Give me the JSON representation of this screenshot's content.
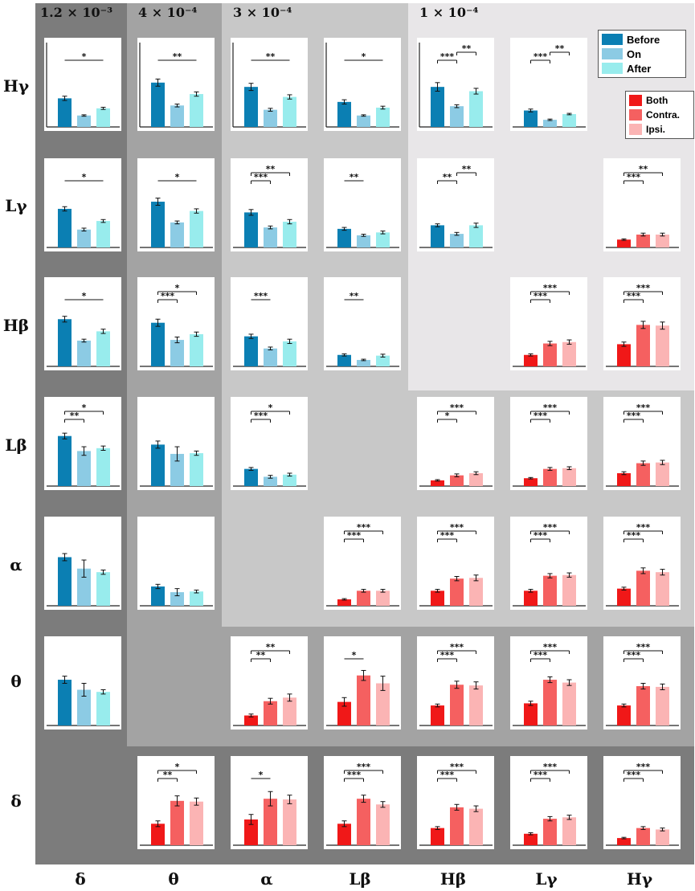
{
  "headers": [
    "1.2 × 10⁻³",
    "4 × 10⁻⁴",
    "3 × 10⁻⁴",
    "1 × 10⁻⁴"
  ],
  "row_labels": [
    "Hγ",
    "Lγ",
    "Hβ",
    "Lβ",
    "α",
    "θ",
    "δ"
  ],
  "col_labels": [
    "δ",
    "θ",
    "α",
    "Lβ",
    "Hβ",
    "Lγ",
    "Hγ"
  ],
  "legend_blue": [
    {
      "label": "Before",
      "color": "#0b7fb3"
    },
    {
      "label": "On",
      "color": "#8ccbe4"
    },
    {
      "label": "After",
      "color": "#98eced"
    }
  ],
  "legend_red": [
    {
      "label": "Both",
      "color": "#f01818"
    },
    {
      "label": "Contra.",
      "color": "#f56060"
    },
    {
      "label": "Ipsi.",
      "color": "#fbb4b4"
    }
  ],
  "chart_data": {
    "type": "bar",
    "ylim": [
      0,
      1
    ],
    "groups": {
      "blue": [
        "Before",
        "On",
        "After"
      ],
      "red": [
        "Both",
        "Contra.",
        "Ipsi."
      ]
    },
    "panels": [
      {
        "row": 0,
        "col": 0,
        "group": "blue",
        "values": [
          0.4,
          0.16,
          0.26
        ],
        "errors": [
          0.03,
          0.01,
          0.015
        ],
        "sig": [
          {
            "from": 0,
            "to": 2,
            "label": "*"
          }
        ]
      },
      {
        "row": 0,
        "col": 1,
        "group": "blue",
        "values": [
          0.62,
          0.3,
          0.46
        ],
        "errors": [
          0.05,
          0.02,
          0.03
        ],
        "sig": [
          {
            "from": 0,
            "to": 2,
            "label": "**"
          }
        ]
      },
      {
        "row": 0,
        "col": 2,
        "group": "blue",
        "values": [
          0.56,
          0.24,
          0.42
        ],
        "errors": [
          0.05,
          0.02,
          0.03
        ],
        "sig": [
          {
            "from": 0,
            "to": 2,
            "label": "**"
          }
        ]
      },
      {
        "row": 0,
        "col": 3,
        "group": "blue",
        "values": [
          0.35,
          0.16,
          0.27
        ],
        "errors": [
          0.03,
          0.01,
          0.02
        ],
        "sig": [
          {
            "from": 0,
            "to": 2,
            "label": "*"
          }
        ]
      },
      {
        "row": 0,
        "col": 4,
        "group": "blue",
        "values": [
          0.56,
          0.29,
          0.5
        ],
        "errors": [
          0.06,
          0.02,
          0.04
        ],
        "sig": [
          {
            "from": 0,
            "to": 1,
            "label": "***"
          },
          {
            "from": 1,
            "to": 2,
            "label": "**"
          }
        ]
      },
      {
        "row": 0,
        "col": 5,
        "group": "blue",
        "values": [
          0.23,
          0.1,
          0.18
        ],
        "errors": [
          0.02,
          0.01,
          0.01
        ],
        "sig": [
          {
            "from": 0,
            "to": 1,
            "label": "***"
          },
          {
            "from": 1,
            "to": 2,
            "label": "**"
          }
        ]
      },
      {
        "row": 1,
        "col": 0,
        "group": "blue",
        "values": [
          0.54,
          0.25,
          0.37
        ],
        "errors": [
          0.03,
          0.02,
          0.02
        ],
        "sig": [
          {
            "from": 0,
            "to": 2,
            "label": "*"
          }
        ]
      },
      {
        "row": 1,
        "col": 1,
        "group": "blue",
        "values": [
          0.64,
          0.35,
          0.51
        ],
        "errors": [
          0.05,
          0.02,
          0.03
        ],
        "sig": [
          {
            "from": 0,
            "to": 2,
            "label": "*"
          }
        ]
      },
      {
        "row": 1,
        "col": 2,
        "group": "blue",
        "values": [
          0.49,
          0.28,
          0.36
        ],
        "errors": [
          0.04,
          0.02,
          0.03
        ],
        "sig": [
          {
            "from": 0,
            "to": 1,
            "label": "***"
          },
          {
            "from": 0,
            "to": 2,
            "label": "**"
          }
        ]
      },
      {
        "row": 1,
        "col": 3,
        "group": "blue",
        "values": [
          0.26,
          0.17,
          0.21
        ],
        "errors": [
          0.02,
          0.015,
          0.02
        ],
        "sig": [
          {
            "from": 0,
            "to": 1,
            "label": "**"
          }
        ]
      },
      {
        "row": 1,
        "col": 4,
        "group": "blue",
        "values": [
          0.31,
          0.19,
          0.31
        ],
        "errors": [
          0.02,
          0.02,
          0.03
        ],
        "sig": [
          {
            "from": 0,
            "to": 1,
            "label": "**"
          },
          {
            "from": 1,
            "to": 2,
            "label": "**"
          }
        ]
      },
      {
        "row": 1,
        "col": 6,
        "group": "red",
        "values": [
          0.11,
          0.18,
          0.18
        ],
        "errors": [
          0.01,
          0.02,
          0.02
        ],
        "sig": [
          {
            "from": 0,
            "to": 1,
            "label": "***"
          },
          {
            "from": 0,
            "to": 2,
            "label": "**"
          }
        ]
      },
      {
        "row": 2,
        "col": 0,
        "group": "blue",
        "values": [
          0.66,
          0.36,
          0.49
        ],
        "errors": [
          0.04,
          0.02,
          0.03
        ],
        "sig": [
          {
            "from": 0,
            "to": 2,
            "label": "*"
          }
        ]
      },
      {
        "row": 2,
        "col": 1,
        "group": "blue",
        "values": [
          0.61,
          0.37,
          0.45
        ],
        "errors": [
          0.05,
          0.04,
          0.03
        ],
        "sig": [
          {
            "from": 0,
            "to": 1,
            "label": "***"
          },
          {
            "from": 0,
            "to": 2,
            "label": "*"
          }
        ]
      },
      {
        "row": 2,
        "col": 2,
        "group": "blue",
        "values": [
          0.42,
          0.25,
          0.35
        ],
        "errors": [
          0.03,
          0.02,
          0.03
        ],
        "sig": [
          {
            "from": 0,
            "to": 1,
            "label": "***"
          }
        ]
      },
      {
        "row": 2,
        "col": 3,
        "group": "blue",
        "values": [
          0.16,
          0.09,
          0.15
        ],
        "errors": [
          0.015,
          0.01,
          0.02
        ],
        "sig": [
          {
            "from": 0,
            "to": 1,
            "label": "**"
          }
        ]
      },
      {
        "row": 2,
        "col": 5,
        "group": "red",
        "values": [
          0.16,
          0.32,
          0.34
        ],
        "errors": [
          0.015,
          0.03,
          0.03
        ],
        "sig": [
          {
            "from": 0,
            "to": 1,
            "label": "***"
          },
          {
            "from": 0,
            "to": 2,
            "label": "***"
          }
        ]
      },
      {
        "row": 2,
        "col": 6,
        "group": "red",
        "values": [
          0.31,
          0.58,
          0.57
        ],
        "errors": [
          0.03,
          0.05,
          0.05
        ],
        "sig": [
          {
            "from": 0,
            "to": 1,
            "label": "***"
          },
          {
            "from": 0,
            "to": 2,
            "label": "***"
          }
        ]
      },
      {
        "row": 3,
        "col": 0,
        "group": "blue",
        "values": [
          0.7,
          0.49,
          0.53
        ],
        "errors": [
          0.04,
          0.06,
          0.03
        ],
        "sig": [
          {
            "from": 0,
            "to": 1,
            "label": "**"
          },
          {
            "from": 0,
            "to": 2,
            "label": "*"
          }
        ]
      },
      {
        "row": 3,
        "col": 1,
        "group": "blue",
        "values": [
          0.58,
          0.45,
          0.46
        ],
        "errors": [
          0.05,
          0.1,
          0.03
        ],
        "sig": []
      },
      {
        "row": 3,
        "col": 2,
        "group": "blue",
        "values": [
          0.24,
          0.13,
          0.16
        ],
        "errors": [
          0.02,
          0.02,
          0.02
        ],
        "sig": [
          {
            "from": 0,
            "to": 1,
            "label": "***"
          },
          {
            "from": 0,
            "to": 2,
            "label": "*"
          }
        ]
      },
      {
        "row": 3,
        "col": 4,
        "group": "red",
        "values": [
          0.08,
          0.15,
          0.18
        ],
        "errors": [
          0.01,
          0.02,
          0.02
        ],
        "sig": [
          {
            "from": 0,
            "to": 1,
            "label": "*"
          },
          {
            "from": 0,
            "to": 2,
            "label": "***"
          }
        ]
      },
      {
        "row": 3,
        "col": 5,
        "group": "red",
        "values": [
          0.11,
          0.24,
          0.25
        ],
        "errors": [
          0.01,
          0.02,
          0.02
        ],
        "sig": [
          {
            "from": 0,
            "to": 1,
            "label": "***"
          },
          {
            "from": 0,
            "to": 2,
            "label": "***"
          }
        ]
      },
      {
        "row": 3,
        "col": 6,
        "group": "red",
        "values": [
          0.18,
          0.32,
          0.33
        ],
        "errors": [
          0.02,
          0.03,
          0.03
        ],
        "sig": [
          {
            "from": 0,
            "to": 1,
            "label": "***"
          },
          {
            "from": 0,
            "to": 2,
            "label": "***"
          }
        ]
      },
      {
        "row": 4,
        "col": 0,
        "group": "blue",
        "values": [
          0.68,
          0.52,
          0.47
        ],
        "errors": [
          0.05,
          0.12,
          0.03
        ],
        "sig": []
      },
      {
        "row": 4,
        "col": 1,
        "group": "blue",
        "values": [
          0.27,
          0.19,
          0.2
        ],
        "errors": [
          0.03,
          0.05,
          0.02
        ],
        "sig": []
      },
      {
        "row": 4,
        "col": 3,
        "group": "red",
        "values": [
          0.09,
          0.21,
          0.21
        ],
        "errors": [
          0.01,
          0.02,
          0.02
        ],
        "sig": [
          {
            "from": 0,
            "to": 1,
            "label": "***"
          },
          {
            "from": 0,
            "to": 2,
            "label": "***"
          }
        ]
      },
      {
        "row": 4,
        "col": 4,
        "group": "red",
        "values": [
          0.21,
          0.38,
          0.39
        ],
        "errors": [
          0.02,
          0.03,
          0.04
        ],
        "sig": [
          {
            "from": 0,
            "to": 1,
            "label": "***"
          },
          {
            "from": 0,
            "to": 2,
            "label": "***"
          }
        ]
      },
      {
        "row": 4,
        "col": 5,
        "group": "red",
        "values": [
          0.21,
          0.42,
          0.43
        ],
        "errors": [
          0.02,
          0.03,
          0.03
        ],
        "sig": [
          {
            "from": 0,
            "to": 1,
            "label": "***"
          },
          {
            "from": 0,
            "to": 2,
            "label": "***"
          }
        ]
      },
      {
        "row": 4,
        "col": 6,
        "group": "red",
        "values": [
          0.24,
          0.49,
          0.47
        ],
        "errors": [
          0.02,
          0.04,
          0.04
        ],
        "sig": [
          {
            "from": 0,
            "to": 1,
            "label": "***"
          },
          {
            "from": 0,
            "to": 2,
            "label": "***"
          }
        ]
      },
      {
        "row": 5,
        "col": 0,
        "group": "blue",
        "values": [
          0.64,
          0.5,
          0.47
        ],
        "errors": [
          0.05,
          0.09,
          0.03
        ],
        "sig": []
      },
      {
        "row": 5,
        "col": 2,
        "group": "red",
        "values": [
          0.14,
          0.34,
          0.39
        ],
        "errors": [
          0.02,
          0.04,
          0.05
        ],
        "sig": [
          {
            "from": 0,
            "to": 1,
            "label": "**"
          },
          {
            "from": 0,
            "to": 2,
            "label": "**"
          }
        ]
      },
      {
        "row": 5,
        "col": 3,
        "group": "red",
        "values": [
          0.33,
          0.7,
          0.59
        ],
        "errors": [
          0.06,
          0.07,
          0.1
        ],
        "sig": [
          {
            "from": 0,
            "to": 1,
            "label": "*"
          }
        ]
      },
      {
        "row": 5,
        "col": 4,
        "group": "red",
        "values": [
          0.28,
          0.57,
          0.56
        ],
        "errors": [
          0.02,
          0.05,
          0.05
        ],
        "sig": [
          {
            "from": 0,
            "to": 1,
            "label": "***"
          },
          {
            "from": 0,
            "to": 2,
            "label": "***"
          }
        ]
      },
      {
        "row": 5,
        "col": 5,
        "group": "red",
        "values": [
          0.31,
          0.64,
          0.6
        ],
        "errors": [
          0.03,
          0.04,
          0.04
        ],
        "sig": [
          {
            "from": 0,
            "to": 1,
            "label": "***"
          },
          {
            "from": 0,
            "to": 2,
            "label": "***"
          }
        ]
      },
      {
        "row": 5,
        "col": 6,
        "group": "red",
        "values": [
          0.28,
          0.55,
          0.54
        ],
        "errors": [
          0.02,
          0.04,
          0.04
        ],
        "sig": [
          {
            "from": 0,
            "to": 1,
            "label": "***"
          },
          {
            "from": 0,
            "to": 2,
            "label": "***"
          }
        ]
      },
      {
        "row": 6,
        "col": 1,
        "group": "red",
        "values": [
          0.3,
          0.62,
          0.61
        ],
        "errors": [
          0.04,
          0.07,
          0.05
        ],
        "sig": [
          {
            "from": 0,
            "to": 1,
            "label": "**"
          },
          {
            "from": 0,
            "to": 2,
            "label": "*"
          }
        ]
      },
      {
        "row": 6,
        "col": 2,
        "group": "red",
        "values": [
          0.36,
          0.65,
          0.64
        ],
        "errors": [
          0.07,
          0.1,
          0.06
        ],
        "sig": [
          {
            "from": 0,
            "to": 1,
            "label": "*"
          }
        ]
      },
      {
        "row": 6,
        "col": 3,
        "group": "red",
        "values": [
          0.3,
          0.65,
          0.57
        ],
        "errors": [
          0.04,
          0.05,
          0.04
        ],
        "sig": [
          {
            "from": 0,
            "to": 1,
            "label": "***"
          },
          {
            "from": 0,
            "to": 2,
            "label": "***"
          }
        ]
      },
      {
        "row": 6,
        "col": 4,
        "group": "red",
        "values": [
          0.24,
          0.53,
          0.51
        ],
        "errors": [
          0.02,
          0.04,
          0.04
        ],
        "sig": [
          {
            "from": 0,
            "to": 1,
            "label": "***"
          },
          {
            "from": 0,
            "to": 2,
            "label": "***"
          }
        ]
      },
      {
        "row": 6,
        "col": 5,
        "group": "red",
        "values": [
          0.16,
          0.37,
          0.39
        ],
        "errors": [
          0.015,
          0.03,
          0.03
        ],
        "sig": [
          {
            "from": 0,
            "to": 1,
            "label": "***"
          },
          {
            "from": 0,
            "to": 2,
            "label": "***"
          }
        ]
      },
      {
        "row": 6,
        "col": 6,
        "group": "red",
        "values": [
          0.1,
          0.24,
          0.22
        ],
        "errors": [
          0.01,
          0.02,
          0.02
        ],
        "sig": [
          {
            "from": 0,
            "to": 1,
            "label": "***"
          },
          {
            "from": 0,
            "to": 2,
            "label": "***"
          }
        ]
      }
    ]
  }
}
